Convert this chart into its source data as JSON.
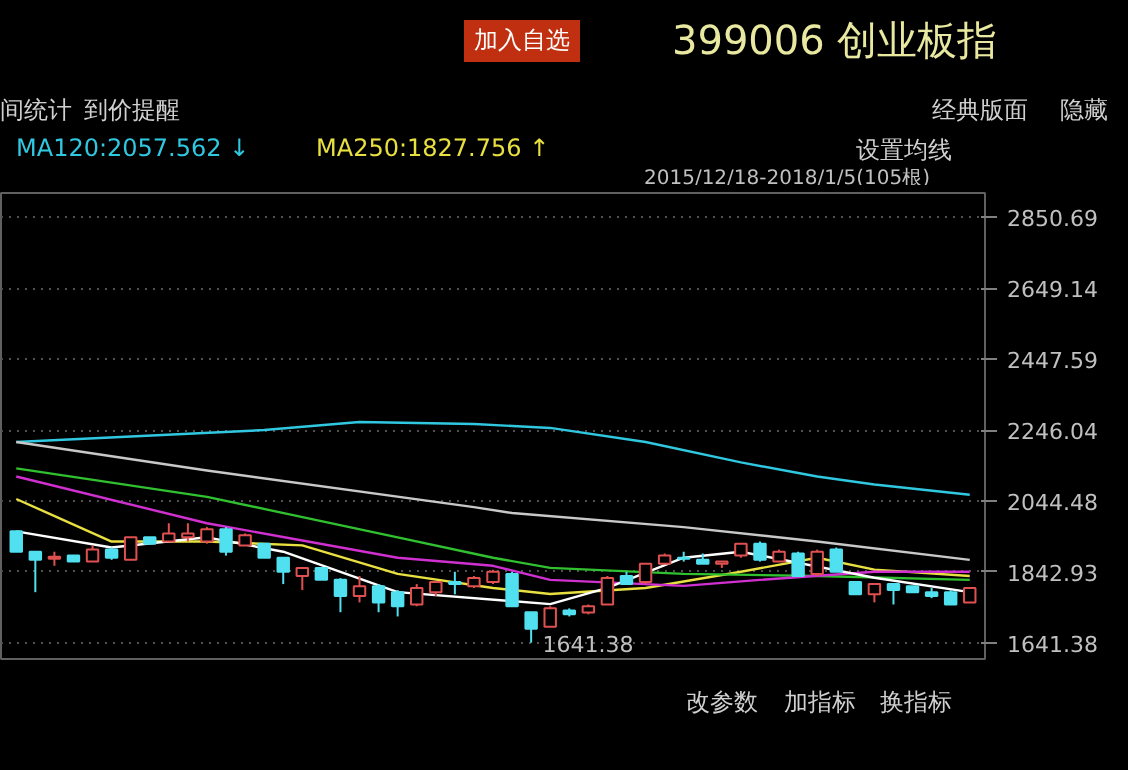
{
  "chart_data": {
    "type": "candlestick",
    "title": "399006 创业板指",
    "categories": [
      null,
      null,
      null,
      null,
      null,
      null,
      null,
      null,
      null,
      null,
      null,
      null,
      null,
      null,
      null,
      null,
      null,
      null,
      null,
      null,
      null,
      null,
      null,
      null,
      null,
      null,
      null,
      null,
      null,
      null,
      null,
      null,
      null,
      null,
      null,
      null,
      null,
      null,
      null,
      null,
      null,
      null,
      null,
      null,
      null,
      null,
      null,
      null,
      null,
      null,
      null
    ],
    "ohlc": [
      [
        1958,
        1958,
        1900,
        1900
      ],
      [
        1900,
        1900,
        1785,
        1877
      ],
      [
        1880,
        1900,
        1860,
        1886
      ],
      [
        1889,
        1889,
        1872,
        1872
      ],
      [
        1872,
        1918,
        1872,
        1906
      ],
      [
        1906,
        1912,
        1877,
        1883
      ],
      [
        1877,
        1941,
        1877,
        1941
      ],
      [
        1941,
        1941,
        1923,
        1923
      ],
      [
        1929,
        1981,
        1929,
        1952
      ],
      [
        1941,
        1981,
        1929,
        1952
      ],
      [
        1929,
        1970,
        1923,
        1964
      ],
      [
        1964,
        1970,
        1889,
        1900
      ],
      [
        1918,
        1952,
        1918,
        1947
      ],
      [
        1923,
        1923,
        1883,
        1883
      ],
      [
        1883,
        1883,
        1808,
        1843
      ],
      [
        1831,
        1854,
        1791,
        1854
      ],
      [
        1854,
        1854,
        1820,
        1820
      ],
      [
        1820,
        1825,
        1728,
        1774
      ],
      [
        1774,
        1831,
        1756,
        1802
      ],
      [
        1802,
        1808,
        1728,
        1756
      ],
      [
        1785,
        1791,
        1716,
        1745
      ],
      [
        1750,
        1808,
        1745,
        1797
      ],
      [
        1785,
        1814,
        1774,
        1814
      ],
      [
        1814,
        1843,
        1779,
        1808
      ],
      [
        1802,
        1831,
        1797,
        1825
      ],
      [
        1814,
        1849,
        1808,
        1843
      ],
      [
        1837,
        1843,
        1745,
        1745
      ],
      [
        1728,
        1728,
        1641.38,
        1681
      ],
      [
        1687,
        1745,
        1687,
        1739
      ],
      [
        1733,
        1739,
        1716,
        1722
      ],
      [
        1727,
        1750,
        1722,
        1745
      ],
      [
        1750,
        1831,
        1750,
        1825
      ],
      [
        1831,
        1843,
        1808,
        1808
      ],
      [
        1814,
        1866,
        1808,
        1866
      ],
      [
        1866,
        1895,
        1866,
        1889
      ],
      [
        1883,
        1900,
        1872,
        1880
      ],
      [
        1877,
        1895,
        1866,
        1866
      ],
      [
        1866,
        1872,
        1854,
        1872
      ],
      [
        1889,
        1923,
        1883,
        1923
      ],
      [
        1923,
        1929,
        1872,
        1877
      ],
      [
        1872,
        1906,
        1872,
        1900
      ],
      [
        1895,
        1900,
        1831,
        1831
      ],
      [
        1837,
        1906,
        1831,
        1900
      ],
      [
        1906,
        1912,
        1843,
        1843
      ],
      [
        1814,
        1814,
        1779,
        1779
      ],
      [
        1779,
        1808,
        1756,
        1808
      ],
      [
        1808,
        1808,
        1750,
        1791
      ],
      [
        1802,
        1802,
        1785,
        1785
      ],
      [
        1785,
        1797,
        1768,
        1774
      ],
      [
        1785,
        1791,
        1750,
        1750
      ],
      [
        1756,
        1797,
        1756,
        1797
      ]
    ],
    "series": [
      {
        "type": "line",
        "name": "MA120:2057.562 ↓",
        "color": "#30c8e0",
        "values": [
          2212,
          null,
          null,
          null,
          null,
          null,
          null,
          null,
          null,
          null,
          null,
          null,
          null,
          2246,
          null,
          null,
          null,
          null,
          2269,
          null,
          null,
          null,
          null,
          null,
          2263,
          null,
          null,
          null,
          2252,
          null,
          null,
          null,
          null,
          2212,
          null,
          null,
          null,
          null,
          2154,
          null,
          null,
          null,
          2114,
          null,
          null,
          2091,
          null,
          null,
          null,
          null,
          2062
        ]
      },
      {
        "type": "line",
        "name": "MA250:1827.756 ↑",
        "color": "#e8e040",
        "values": [
          2050,
          null,
          null,
          null,
          null,
          1929,
          null,
          null,
          null,
          null,
          1929,
          null,
          null,
          null,
          null,
          1918,
          null,
          null,
          null,
          null,
          1837,
          null,
          null,
          null,
          null,
          1797,
          null,
          null,
          1780,
          null,
          null,
          null,
          null,
          1797,
          null,
          null,
          null,
          null,
          1843,
          null,
          null,
          null,
          1883,
          null,
          null,
          1849,
          null,
          null,
          null,
          null,
          1831
        ]
      },
      {
        "type": "line",
        "color": "#c8c8c8",
        "values": [
          2212,
          null,
          null,
          null,
          null,
          null,
          null,
          null,
          null,
          null,
          2131,
          null,
          null,
          null,
          null,
          null,
          null,
          null,
          null,
          null,
          null,
          null,
          null,
          null,
          2027,
          null,
          2010,
          null,
          null,
          null,
          null,
          null,
          null,
          null,
          null,
          1970,
          null,
          null,
          null,
          null,
          null,
          null,
          1929,
          null,
          null,
          null,
          null,
          null,
          null,
          null,
          1877
        ]
      },
      {
        "type": "line",
        "color": "#30c030",
        "values": [
          2137,
          null,
          null,
          null,
          null,
          null,
          null,
          null,
          null,
          null,
          2056,
          null,
          null,
          null,
          null,
          null,
          null,
          null,
          null,
          null,
          1941,
          null,
          null,
          null,
          null,
          1883,
          null,
          null,
          1854,
          null,
          null,
          null,
          null,
          null,
          null,
          1837,
          null,
          null,
          null,
          null,
          null,
          null,
          1831,
          null,
          null,
          null,
          null,
          null,
          null,
          null,
          1820
        ]
      },
      {
        "type": "line",
        "color": "#d030d0",
        "values": [
          2114,
          null,
          null,
          null,
          null,
          null,
          null,
          null,
          null,
          null,
          1981,
          null,
          null,
          null,
          null,
          null,
          null,
          null,
          null,
          null,
          1883,
          null,
          null,
          null,
          null,
          1860,
          null,
          null,
          1820,
          null,
          null,
          null,
          null,
          null,
          null,
          1803,
          null,
          null,
          null,
          1820,
          null,
          null,
          null,
          null,
          null,
          1843,
          null,
          null,
          null,
          null,
          1843
        ]
      },
      {
        "type": "line",
        "color": "#ffffff",
        "values": [
          1958,
          null,
          null,
          null,
          null,
          1912,
          null,
          null,
          null,
          null,
          1941,
          null,
          null,
          null,
          1900,
          null,
          null,
          1843,
          null,
          null,
          1785,
          null,
          null,
          null,
          null,
          null,
          null,
          null,
          1751,
          null,
          null,
          1797,
          null,
          null,
          null,
          1883,
          null,
          null,
          1900,
          null,
          null,
          null,
          null,
          null,
          null,
          1826,
          null,
          null,
          null,
          null,
          1785
        ]
      }
    ],
    "ylim": [
      1595,
      2920
    ],
    "yticks": [
      1641.38,
      1842.93,
      2044.48,
      2246.04,
      2447.59,
      2649.14,
      2850.69
    ],
    "grid": "y",
    "legend": "top left",
    "tick_labels": "y",
    "annotations": [
      "加入自选",
      "间统计",
      "到价提醒",
      "经典版面",
      "隐藏",
      "设置均线",
      "2015/12/18-2018/1/5(105根)",
      "改参数",
      "加指标",
      "换指标",
      "1641.38"
    ]
  }
}
